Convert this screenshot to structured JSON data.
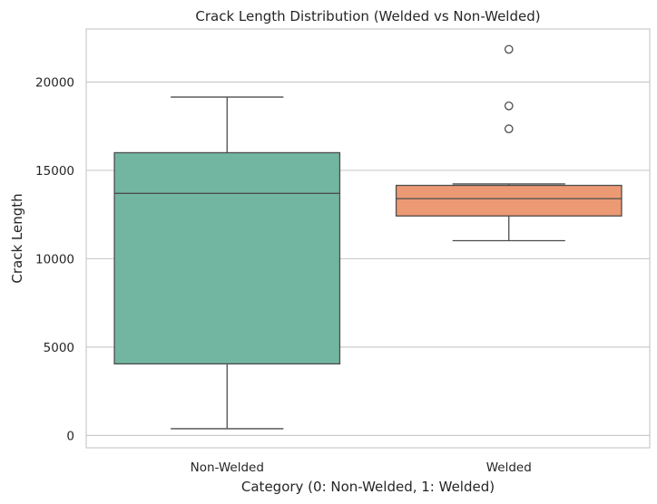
{
  "chart_data": {
    "type": "box",
    "title": "Crack Length Distribution (Welded vs Non-Welded)",
    "xlabel": "Category (0: Non-Welded, 1: Welded)",
    "ylabel": "Crack Length",
    "ylim": [
      -700,
      23000
    ],
    "yticks": [
      0,
      5000,
      10000,
      15000,
      20000
    ],
    "grid": true,
    "categories": [
      "Non-Welded",
      "Welded"
    ],
    "boxes": [
      {
        "name": "Non-Welded",
        "color": "#72b6a1",
        "whisker_low": 380,
        "q1": 4050,
        "median": 13700,
        "q3": 16000,
        "whisker_high": 19150,
        "outliers": []
      },
      {
        "name": "Welded",
        "color": "#ec9a73",
        "whisker_low": 11020,
        "q1": 12420,
        "median": 13400,
        "q3": 14150,
        "whisker_high": 14230,
        "outliers": [
          17350,
          18650,
          21850
        ]
      }
    ],
    "colors": {
      "edge": "#4d4d4d",
      "grid": "#cccccc",
      "frame": "#cccccc",
      "text": "#262626"
    }
  }
}
